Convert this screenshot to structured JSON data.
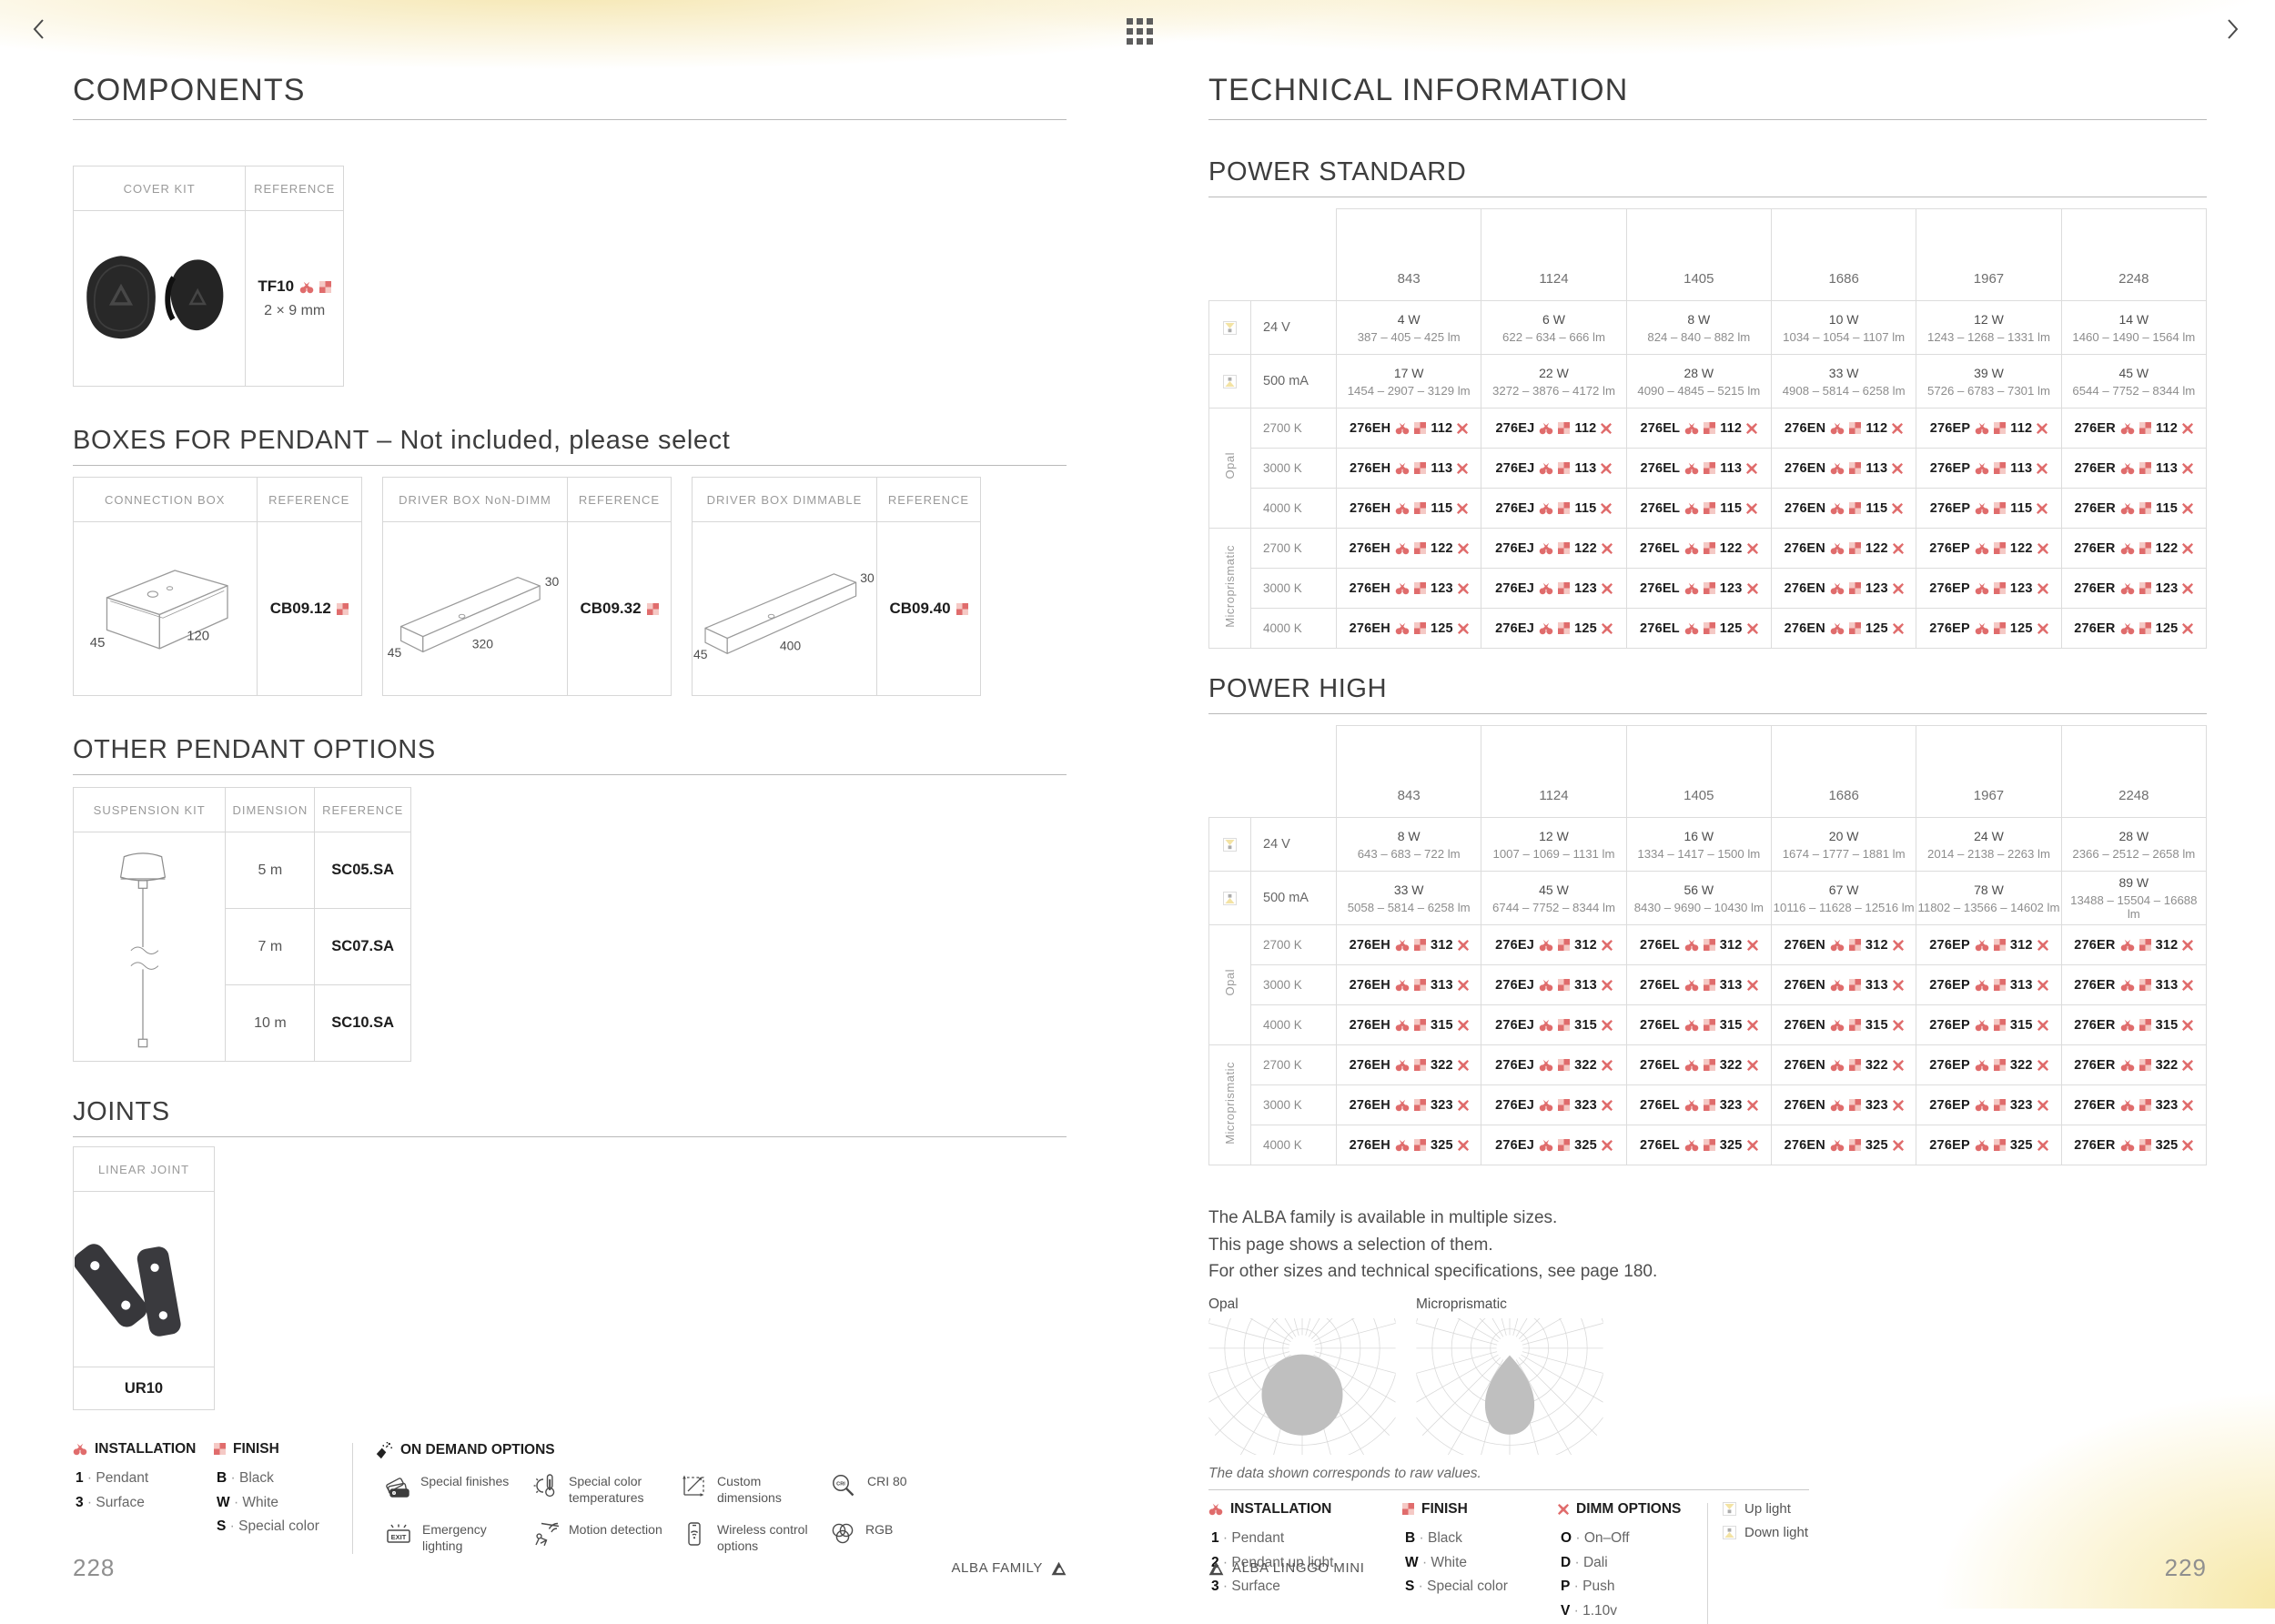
{
  "colors": {
    "accent": "#e06c6c",
    "checker_light": "#f5c9c5",
    "beam_yellow": "#f3e3a4",
    "fixture_gray": "#ababab"
  },
  "left_page": {
    "title": "COMPONENTS",
    "cover_kit": {
      "col1": "COVER KIT",
      "col2": "REFERENCE",
      "ref": "TF10",
      "dim": "2 × 9 mm"
    },
    "boxes": {
      "title": "BOXES FOR PENDANT – Not included, please select",
      "items": [
        {
          "header": "CONNECTION BOX",
          "ref_header": "REFERENCE",
          "ref": "CB09.12",
          "dims": [
            "45",
            "120"
          ]
        },
        {
          "header": "DRIVER BOX NoN-DIMM",
          "ref_header": "REFERENCE",
          "ref": "CB09.32",
          "dims": [
            "45",
            "320",
            "30"
          ]
        },
        {
          "header": "DRIVER BOX DIMMABLE",
          "ref_header": "REFERENCE",
          "ref": "CB09.40",
          "dims": [
            "45",
            "400",
            "30"
          ]
        }
      ]
    },
    "pendant_options": {
      "title": "OTHER  PENDANT OPTIONS",
      "col1": "SUSPENSION KIT",
      "col2": "DIMENSION",
      "col3": "REFERENCE",
      "rows": [
        {
          "dimension": "5 m",
          "ref": "SC05.SA"
        },
        {
          "dimension": "7 m",
          "ref": "SC07.SA"
        },
        {
          "dimension": "10 m",
          "ref": "SC10.SA"
        }
      ]
    },
    "joints": {
      "title": "JOINTS",
      "header": "LINEAR JOINT",
      "ref": "UR10"
    },
    "legend": {
      "installation": {
        "title": "INSTALLATION",
        "items": [
          {
            "key": "1",
            "label": "Pendant"
          },
          {
            "key": "3",
            "label": "Surface"
          }
        ]
      },
      "finish": {
        "title": "FINISH",
        "items": [
          {
            "key": "B",
            "label": "Black"
          },
          {
            "key": "W",
            "label": "White"
          },
          {
            "key": "S",
            "label": "Special color"
          }
        ]
      },
      "on_demand": {
        "title": "ON DEMAND OPTIONS",
        "items": [
          {
            "icon": "swatches",
            "label": "Special finishes"
          },
          {
            "icon": "exit",
            "label": "Emergency lighting"
          },
          {
            "icon": "thermometer",
            "label": "Special color temperatures"
          },
          {
            "icon": "motion",
            "label": "Motion detection"
          },
          {
            "icon": "dimensions",
            "label": "Custom dimensions"
          },
          {
            "icon": "wireless",
            "label": "Wireless control options"
          },
          {
            "icon": "cri",
            "label": "CRI 80"
          },
          {
            "icon": "rgb",
            "label": "RGB"
          }
        ]
      }
    },
    "footer": {
      "page": "228",
      "label": "ALBA FAMILY"
    }
  },
  "right_page": {
    "title": "TECHNICAL INFORMATION",
    "power_standard": {
      "title": "POWER STANDARD",
      "sizes": [
        "843",
        "1124",
        "1405",
        "1686",
        "1967",
        "2248"
      ],
      "power_rows": [
        {
          "icon": "uplight",
          "label": "24 V",
          "cells": [
            {
              "w": "4 W",
              "lm": "387 – 405 – 425 lm"
            },
            {
              "w": "6 W",
              "lm": "622 – 634 – 666 lm"
            },
            {
              "w": "8 W",
              "lm": "824 – 840 – 882 lm"
            },
            {
              "w": "10 W",
              "lm": "1034 – 1054 – 1107 lm"
            },
            {
              "w": "12 W",
              "lm": "1243 – 1268 – 1331 lm"
            },
            {
              "w": "14 W",
              "lm": "1460 – 1490 – 1564 lm"
            }
          ]
        },
        {
          "icon": "downlight",
          "label": "500 mA",
          "cells": [
            {
              "w": "17 W",
              "lm": "1454 – 2907 – 3129 lm"
            },
            {
              "w": "22 W",
              "lm": "3272 – 3876 – 4172 lm"
            },
            {
              "w": "28 W",
              "lm": "4090 – 4845 – 5215 lm"
            },
            {
              "w": "33 W",
              "lm": "4908 – 5814 – 6258 lm"
            },
            {
              "w": "39 W",
              "lm": "5726 – 6783 – 7301 lm"
            },
            {
              "w": "45 W",
              "lm": "6544 – 7752 – 8344 lm"
            }
          ]
        }
      ],
      "code_prefixes": [
        "276EH",
        "276EJ",
        "276EL",
        "276EN",
        "276EP",
        "276ER"
      ],
      "groups": [
        {
          "name": "Opal",
          "rows": [
            {
              "temp": "2700 K",
              "suffix": "112"
            },
            {
              "temp": "3000 K",
              "suffix": "113"
            },
            {
              "temp": "4000 K",
              "suffix": "115"
            }
          ]
        },
        {
          "name": "Microprismatic",
          "rows": [
            {
              "temp": "2700 K",
              "suffix": "122"
            },
            {
              "temp": "3000 K",
              "suffix": "123"
            },
            {
              "temp": "4000 K",
              "suffix": "125"
            }
          ]
        }
      ]
    },
    "power_high": {
      "title": "POWER HIGH",
      "sizes": [
        "843",
        "1124",
        "1405",
        "1686",
        "1967",
        "2248"
      ],
      "power_rows": [
        {
          "icon": "uplight",
          "label": "24 V",
          "cells": [
            {
              "w": "8 W",
              "lm": "643 – 683 – 722 lm"
            },
            {
              "w": "12 W",
              "lm": "1007 – 1069 – 1131 lm"
            },
            {
              "w": "16 W",
              "lm": "1334 – 1417 – 1500 lm"
            },
            {
              "w": "20 W",
              "lm": "1674 – 1777 – 1881 lm"
            },
            {
              "w": "24 W",
              "lm": "2014 – 2138 – 2263 lm"
            },
            {
              "w": "28 W",
              "lm": "2366 – 2512 – 2658 lm"
            }
          ]
        },
        {
          "icon": "downlight",
          "label": "500 mA",
          "cells": [
            {
              "w": "33 W",
              "lm": "5058 – 5814 – 6258 lm"
            },
            {
              "w": "45 W",
              "lm": "6744 – 7752 – 8344 lm"
            },
            {
              "w": "56 W",
              "lm": "8430 – 9690 – 10430 lm"
            },
            {
              "w": "67 W",
              "lm": "10116 – 11628 – 12516 lm"
            },
            {
              "w": "78 W",
              "lm": "11802 – 13566 – 14602 lm"
            },
            {
              "w": "89 W",
              "lm": "13488 – 15504 – 16688 lm"
            }
          ]
        }
      ],
      "code_prefixes": [
        "276EH",
        "276EJ",
        "276EL",
        "276EN",
        "276EP",
        "276ER"
      ],
      "groups": [
        {
          "name": "Opal",
          "rows": [
            {
              "temp": "2700 K",
              "suffix": "312"
            },
            {
              "temp": "3000 K",
              "suffix": "313"
            },
            {
              "temp": "4000 K",
              "suffix": "315"
            }
          ]
        },
        {
          "name": "Microprismatic",
          "rows": [
            {
              "temp": "2700 K",
              "suffix": "322"
            },
            {
              "temp": "3000 K",
              "suffix": "323"
            },
            {
              "temp": "4000 K",
              "suffix": "325"
            }
          ]
        }
      ]
    },
    "note_lines": [
      "The ALBA family is available in multiple sizes.",
      "This page shows a selection of them.",
      "For other sizes and technical specifications, see page 180."
    ],
    "diagrams": {
      "opal": "Opal",
      "micro": "Microprismatic",
      "caption": "The data shown corresponds to raw values."
    },
    "legend": {
      "installation": {
        "title": "INSTALLATION",
        "items": [
          {
            "key": "1",
            "label": "Pendant"
          },
          {
            "key": "2",
            "label": "Pendant up light"
          },
          {
            "key": "3",
            "label": "Surface"
          }
        ]
      },
      "finish": {
        "title": "FINISH",
        "items": [
          {
            "key": "B",
            "label": "Black"
          },
          {
            "key": "W",
            "label": "White"
          },
          {
            "key": "S",
            "label": "Special color"
          }
        ]
      },
      "dimm": {
        "title": "DIMM OPTIONS",
        "items": [
          {
            "key": "O",
            "label": "On–Off"
          },
          {
            "key": "D",
            "label": "Dali"
          },
          {
            "key": "P",
            "label": "Push"
          },
          {
            "key": "V",
            "label": "1.10v"
          }
        ]
      },
      "lights": [
        {
          "icon": "uplight",
          "label": "Up light"
        },
        {
          "icon": "downlight",
          "label": "Down light"
        }
      ]
    },
    "footer": {
      "label": "ALBA LINGGO MINI",
      "page": "229"
    }
  }
}
